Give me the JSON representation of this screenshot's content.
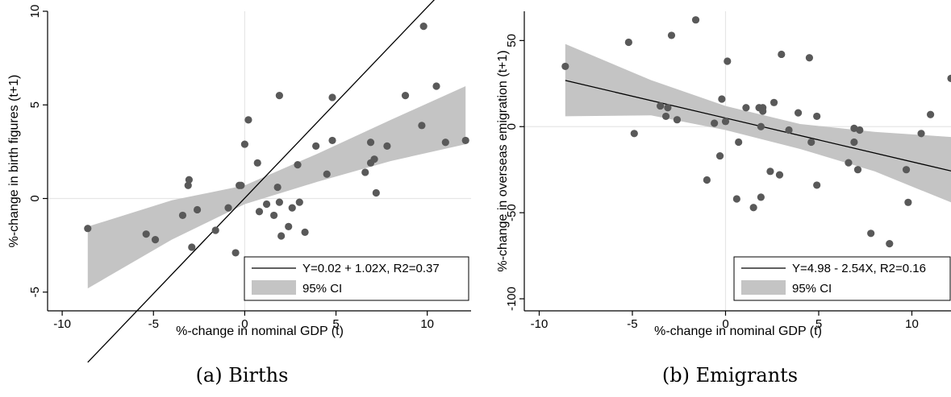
{
  "captions": {
    "a": "(a) Births",
    "b": "(b) Emigrants"
  },
  "colors": {
    "points": "#595959",
    "band": "#c4c4c4",
    "line": "#000000",
    "zero_line": "#e6e6e6"
  },
  "chart_data": [
    {
      "type": "scatter",
      "panel": "a",
      "xlabel": "%-change in nominal GDP (t)",
      "ylabel": "%-change in birth figures (t+1)",
      "xlim": [
        -10.8,
        12.4
      ],
      "ylim": [
        -6.0,
        10.0
      ],
      "xticks": [
        -10,
        -5,
        0,
        5,
        10
      ],
      "yticks": [
        -5,
        0,
        5,
        10
      ],
      "legend": {
        "position": "bottom-right",
        "fit_label": "Y=0.02 + 1.02X, R2=0.37",
        "ci_label": "95% CI"
      },
      "fit": {
        "intercept": 0.02,
        "slope": 1.02
      },
      "ci_band": {
        "x": [
          -8.6,
          -4.0,
          0.0,
          4.0,
          8.0,
          12.1
        ],
        "lower": [
          -4.8,
          -2.2,
          -0.3,
          0.9,
          2.0,
          2.9
        ],
        "upper": [
          -1.5,
          -0.1,
          0.7,
          2.4,
          4.2,
          6.0
        ]
      },
      "points": [
        {
          "x": -8.6,
          "y": -1.6
        },
        {
          "x": -5.4,
          "y": -1.9
        },
        {
          "x": -4.9,
          "y": -2.2
        },
        {
          "x": -3.4,
          "y": -0.9
        },
        {
          "x": -3.1,
          "y": 0.7
        },
        {
          "x": -3.05,
          "y": 1.0
        },
        {
          "x": -2.9,
          "y": -2.6
        },
        {
          "x": -2.6,
          "y": -0.6
        },
        {
          "x": -1.6,
          "y": -1.7
        },
        {
          "x": -0.9,
          "y": -0.5
        },
        {
          "x": -0.5,
          "y": -2.9
        },
        {
          "x": -0.3,
          "y": 0.7
        },
        {
          "x": -0.2,
          "y": 0.7
        },
        {
          "x": 0.0,
          "y": 2.9
        },
        {
          "x": 0.2,
          "y": 4.2
        },
        {
          "x": 0.7,
          "y": 1.9
        },
        {
          "x": 0.8,
          "y": -0.7
        },
        {
          "x": 1.2,
          "y": -0.3
        },
        {
          "x": 1.6,
          "y": -0.9
        },
        {
          "x": 1.8,
          "y": 0.6
        },
        {
          "x": 1.9,
          "y": -0.2
        },
        {
          "x": 1.9,
          "y": 5.5
        },
        {
          "x": 2.0,
          "y": -2.0
        },
        {
          "x": 2.4,
          "y": -1.5
        },
        {
          "x": 2.6,
          "y": -0.5
        },
        {
          "x": 2.9,
          "y": 1.8
        },
        {
          "x": 3.0,
          "y": -0.2
        },
        {
          "x": 3.3,
          "y": -1.8
        },
        {
          "x": 3.9,
          "y": 2.8
        },
        {
          "x": 4.5,
          "y": 1.3
        },
        {
          "x": 4.8,
          "y": 3.1
        },
        {
          "x": 4.8,
          "y": 5.4
        },
        {
          "x": 6.6,
          "y": 1.4
        },
        {
          "x": 6.9,
          "y": 3.0
        },
        {
          "x": 6.9,
          "y": 1.9
        },
        {
          "x": 7.1,
          "y": 2.1
        },
        {
          "x": 7.2,
          "y": 0.3
        },
        {
          "x": 7.8,
          "y": 2.8
        },
        {
          "x": 8.8,
          "y": 5.5
        },
        {
          "x": 9.7,
          "y": 3.9
        },
        {
          "x": 9.8,
          "y": 9.2
        },
        {
          "x": 10.5,
          "y": 6.0
        },
        {
          "x": 11.0,
          "y": 3.0
        },
        {
          "x": 12.1,
          "y": 3.1
        }
      ]
    },
    {
      "type": "scatter",
      "panel": "b",
      "xlabel": "%-change in nominal GDP (t)",
      "ylabel": "%-change in overseas emigration (t+1)",
      "xlim": [
        -10.8,
        12.1
      ],
      "ylim": [
        -107,
        67
      ],
      "xticks": [
        -10,
        -5,
        0,
        5,
        10
      ],
      "yticks": [
        -100,
        -50,
        0,
        50
      ],
      "legend": {
        "position": "bottom-right",
        "fit_label": "Y=4.98 - 2.54X, R2=0.16",
        "ci_label": "95% CI"
      },
      "fit": {
        "intercept": 4.98,
        "slope": -2.54
      },
      "ci_band": {
        "x": [
          -8.6,
          -4.0,
          0.0,
          4.0,
          8.0,
          12.1
        ],
        "lower": [
          6.0,
          6.5,
          -2.0,
          -13.0,
          -26.0,
          -44.0
        ],
        "upper": [
          48.0,
          27.0,
          12.0,
          1.5,
          -3.0,
          -6.0
        ]
      },
      "points": [
        {
          "x": -8.6,
          "y": 35.0
        },
        {
          "x": -5.2,
          "y": 49.0
        },
        {
          "x": -4.9,
          "y": -4.0
        },
        {
          "x": -3.5,
          "y": 12.0
        },
        {
          "x": -3.2,
          "y": 6.0
        },
        {
          "x": -3.1,
          "y": 11.0
        },
        {
          "x": -2.9,
          "y": 53.0
        },
        {
          "x": -2.6,
          "y": 4.0
        },
        {
          "x": -1.6,
          "y": 62.0
        },
        {
          "x": -1.0,
          "y": -31.0
        },
        {
          "x": -0.6,
          "y": 2.0
        },
        {
          "x": -0.3,
          "y": -17.0
        },
        {
          "x": -0.2,
          "y": 16.0
        },
        {
          "x": 0.0,
          "y": 3.0
        },
        {
          "x": 0.1,
          "y": 38.0
        },
        {
          "x": 0.6,
          "y": -42.0
        },
        {
          "x": 0.7,
          "y": -9.0
        },
        {
          "x": 1.1,
          "y": 11.0
        },
        {
          "x": 1.5,
          "y": -47.0
        },
        {
          "x": 1.8,
          "y": 11.0
        },
        {
          "x": 1.9,
          "y": 0.0
        },
        {
          "x": 1.9,
          "y": -41.0
        },
        {
          "x": 2.0,
          "y": 11.0
        },
        {
          "x": 2.0,
          "y": 9.0
        },
        {
          "x": 2.4,
          "y": -26.0
        },
        {
          "x": 2.6,
          "y": 14.0
        },
        {
          "x": 2.9,
          "y": -28.0
        },
        {
          "x": 3.0,
          "y": 42.0
        },
        {
          "x": 3.4,
          "y": -2.0
        },
        {
          "x": 3.9,
          "y": 8.0
        },
        {
          "x": 4.5,
          "y": 40.0
        },
        {
          "x": 4.6,
          "y": -9.0
        },
        {
          "x": 4.9,
          "y": 6.0
        },
        {
          "x": 4.9,
          "y": -34.0
        },
        {
          "x": 6.6,
          "y": -21.0
        },
        {
          "x": 6.9,
          "y": -9.0
        },
        {
          "x": 6.9,
          "y": -1.0
        },
        {
          "x": 7.1,
          "y": -25.0
        },
        {
          "x": 7.2,
          "y": -2.0
        },
        {
          "x": 7.8,
          "y": -62.0
        },
        {
          "x": 8.8,
          "y": -68.0
        },
        {
          "x": 9.7,
          "y": -25.0
        },
        {
          "x": 9.8,
          "y": -44.0
        },
        {
          "x": 10.5,
          "y": -4.0
        },
        {
          "x": 11.0,
          "y": 7.0
        },
        {
          "x": 12.1,
          "y": 28.0
        }
      ]
    }
  ]
}
